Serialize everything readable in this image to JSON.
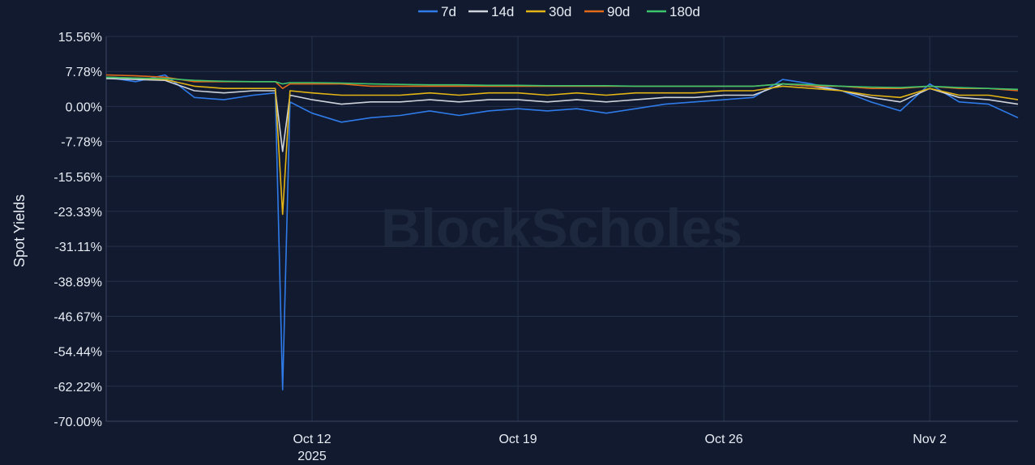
{
  "chart_data": {
    "type": "line",
    "title": "",
    "xlabel": "",
    "ylabel": "Spot Yields",
    "watermark": "BlockScholes",
    "ylim": [
      -70.0,
      15.56
    ],
    "xlim": [
      "2025-10-05",
      "2025-11-05"
    ],
    "yticks": [
      "15.56%",
      "7.78%",
      "0.00%",
      "-7.78%",
      "-15.56%",
      "-23.33%",
      "-31.11%",
      "-38.89%",
      "-46.67%",
      "-54.44%",
      "-62.22%",
      "-70.00%"
    ],
    "ytick_values": [
      15.56,
      7.78,
      0.0,
      -7.78,
      -15.56,
      -23.33,
      -31.11,
      -38.89,
      -46.67,
      -54.44,
      -62.22,
      -70.0
    ],
    "xticks": [
      {
        "label": "Oct 12",
        "sublabel": "2025",
        "date": "2025-10-12"
      },
      {
        "label": "Oct 19",
        "sublabel": "",
        "date": "2025-10-19"
      },
      {
        "label": "Oct 26",
        "sublabel": "",
        "date": "2025-10-26"
      },
      {
        "label": "Nov 2",
        "sublabel": "",
        "date": "2025-11-02"
      }
    ],
    "grid": true,
    "legend_position": "top-center",
    "series": [
      {
        "name": "7d",
        "color": "#2f7bea",
        "points": [
          [
            "2025-10-05",
            6.5
          ],
          [
            "2025-10-06",
            5.5
          ],
          [
            "2025-10-07",
            7.0
          ],
          [
            "2025-10-08",
            2.0
          ],
          [
            "2025-10-09",
            1.5
          ],
          [
            "2025-10-10",
            2.5
          ],
          [
            "2025-10-10T18:00",
            3.0
          ],
          [
            "2025-10-11",
            -63.0
          ],
          [
            "2025-10-11T06:00",
            1.0
          ],
          [
            "2025-10-12",
            -1.5
          ],
          [
            "2025-10-13",
            -3.5
          ],
          [
            "2025-10-14",
            -2.5
          ],
          [
            "2025-10-15",
            -2.0
          ],
          [
            "2025-10-16",
            -1.0
          ],
          [
            "2025-10-17",
            -2.0
          ],
          [
            "2025-10-18",
            -1.0
          ],
          [
            "2025-10-19",
            -0.5
          ],
          [
            "2025-10-20",
            -1.0
          ],
          [
            "2025-10-21",
            -0.5
          ],
          [
            "2025-10-22",
            -1.5
          ],
          [
            "2025-10-23",
            -0.5
          ],
          [
            "2025-10-24",
            0.5
          ],
          [
            "2025-10-25",
            1.0
          ],
          [
            "2025-10-26",
            1.5
          ],
          [
            "2025-10-27",
            2.0
          ],
          [
            "2025-10-28",
            6.0
          ],
          [
            "2025-10-29",
            5.0
          ],
          [
            "2025-10-30",
            3.5
          ],
          [
            "2025-10-31",
            1.0
          ],
          [
            "2025-11-01",
            -1.0
          ],
          [
            "2025-11-02",
            5.0
          ],
          [
            "2025-11-03",
            1.0
          ],
          [
            "2025-11-04",
            0.5
          ],
          [
            "2025-11-05",
            -2.5
          ]
        ]
      },
      {
        "name": "14d",
        "color": "#cfd4dc",
        "points": [
          [
            "2025-10-05",
            6.2
          ],
          [
            "2025-10-06",
            6.0
          ],
          [
            "2025-10-07",
            5.8
          ],
          [
            "2025-10-08",
            3.5
          ],
          [
            "2025-10-09",
            3.0
          ],
          [
            "2025-10-10",
            3.5
          ],
          [
            "2025-10-10T18:00",
            3.5
          ],
          [
            "2025-10-11",
            -10.0
          ],
          [
            "2025-10-11T06:00",
            2.5
          ],
          [
            "2025-10-12",
            1.5
          ],
          [
            "2025-10-13",
            0.5
          ],
          [
            "2025-10-14",
            1.0
          ],
          [
            "2025-10-15",
            1.0
          ],
          [
            "2025-10-16",
            1.5
          ],
          [
            "2025-10-17",
            1.0
          ],
          [
            "2025-10-18",
            1.5
          ],
          [
            "2025-10-19",
            1.5
          ],
          [
            "2025-10-20",
            1.0
          ],
          [
            "2025-10-21",
            1.5
          ],
          [
            "2025-10-22",
            1.0
          ],
          [
            "2025-10-23",
            1.5
          ],
          [
            "2025-10-24",
            2.0
          ],
          [
            "2025-10-25",
            2.0
          ],
          [
            "2025-10-26",
            2.5
          ],
          [
            "2025-10-27",
            2.5
          ],
          [
            "2025-10-28",
            5.0
          ],
          [
            "2025-10-29",
            4.5
          ],
          [
            "2025-10-30",
            3.5
          ],
          [
            "2025-10-31",
            2.0
          ],
          [
            "2025-11-01",
            1.0
          ],
          [
            "2025-11-02",
            4.0
          ],
          [
            "2025-11-03",
            2.0
          ],
          [
            "2025-11-04",
            1.5
          ],
          [
            "2025-11-05",
            0.5
          ]
        ]
      },
      {
        "name": "30d",
        "color": "#e3b416",
        "points": [
          [
            "2025-10-05",
            6.5
          ],
          [
            "2025-10-06",
            6.3
          ],
          [
            "2025-10-07",
            6.0
          ],
          [
            "2025-10-08",
            4.5
          ],
          [
            "2025-10-09",
            4.0
          ],
          [
            "2025-10-10",
            4.0
          ],
          [
            "2025-10-10T18:00",
            4.0
          ],
          [
            "2025-10-11",
            -24.0
          ],
          [
            "2025-10-11T06:00",
            3.5
          ],
          [
            "2025-10-12",
            3.0
          ],
          [
            "2025-10-13",
            2.5
          ],
          [
            "2025-10-14",
            2.5
          ],
          [
            "2025-10-15",
            2.5
          ],
          [
            "2025-10-16",
            3.0
          ],
          [
            "2025-10-17",
            2.5
          ],
          [
            "2025-10-18",
            3.0
          ],
          [
            "2025-10-19",
            3.0
          ],
          [
            "2025-10-20",
            2.5
          ],
          [
            "2025-10-21",
            3.0
          ],
          [
            "2025-10-22",
            2.5
          ],
          [
            "2025-10-23",
            3.0
          ],
          [
            "2025-10-24",
            3.0
          ],
          [
            "2025-10-25",
            3.0
          ],
          [
            "2025-10-26",
            3.5
          ],
          [
            "2025-10-27",
            3.5
          ],
          [
            "2025-10-28",
            4.5
          ],
          [
            "2025-10-29",
            4.0
          ],
          [
            "2025-10-30",
            3.5
          ],
          [
            "2025-10-31",
            2.5
          ],
          [
            "2025-11-01",
            2.0
          ],
          [
            "2025-11-02",
            4.0
          ],
          [
            "2025-11-03",
            2.5
          ],
          [
            "2025-11-04",
            2.5
          ],
          [
            "2025-11-05",
            1.5
          ]
        ]
      },
      {
        "name": "90d",
        "color": "#e06a1a",
        "points": [
          [
            "2025-10-05",
            7.0
          ],
          [
            "2025-10-06",
            6.8
          ],
          [
            "2025-10-07",
            6.5
          ],
          [
            "2025-10-08",
            5.5
          ],
          [
            "2025-10-09",
            5.5
          ],
          [
            "2025-10-10",
            5.5
          ],
          [
            "2025-10-10T18:00",
            5.5
          ],
          [
            "2025-10-11",
            4.0
          ],
          [
            "2025-10-11T06:00",
            5.0
          ],
          [
            "2025-10-12",
            5.0
          ],
          [
            "2025-10-13",
            5.0
          ],
          [
            "2025-10-14",
            4.5
          ],
          [
            "2025-10-15",
            4.5
          ],
          [
            "2025-10-16",
            4.5
          ],
          [
            "2025-10-17",
            4.5
          ],
          [
            "2025-10-18",
            4.5
          ],
          [
            "2025-10-19",
            4.5
          ],
          [
            "2025-10-20",
            4.5
          ],
          [
            "2025-10-21",
            4.5
          ],
          [
            "2025-10-22",
            4.5
          ],
          [
            "2025-10-23",
            4.5
          ],
          [
            "2025-10-24",
            4.5
          ],
          [
            "2025-10-25",
            4.5
          ],
          [
            "2025-10-26",
            4.5
          ],
          [
            "2025-10-27",
            4.5
          ],
          [
            "2025-10-28",
            5.0
          ],
          [
            "2025-10-29",
            4.5
          ],
          [
            "2025-10-30",
            4.5
          ],
          [
            "2025-10-31",
            4.0
          ],
          [
            "2025-11-01",
            4.0
          ],
          [
            "2025-11-02",
            4.5
          ],
          [
            "2025-11-03",
            4.0
          ],
          [
            "2025-11-04",
            4.0
          ],
          [
            "2025-11-05",
            3.5
          ]
        ]
      },
      {
        "name": "180d",
        "color": "#3ec46d",
        "points": [
          [
            "2025-10-05",
            6.5
          ],
          [
            "2025-10-06",
            6.3
          ],
          [
            "2025-10-07",
            6.2
          ],
          [
            "2025-10-08",
            5.8
          ],
          [
            "2025-10-09",
            5.6
          ],
          [
            "2025-10-10",
            5.5
          ],
          [
            "2025-10-10T18:00",
            5.5
          ],
          [
            "2025-10-11",
            5.0
          ],
          [
            "2025-10-11T06:00",
            5.3
          ],
          [
            "2025-10-12",
            5.3
          ],
          [
            "2025-10-13",
            5.2
          ],
          [
            "2025-10-14",
            5.0
          ],
          [
            "2025-10-15",
            4.9
          ],
          [
            "2025-10-16",
            4.8
          ],
          [
            "2025-10-17",
            4.8
          ],
          [
            "2025-10-18",
            4.7
          ],
          [
            "2025-10-19",
            4.7
          ],
          [
            "2025-10-20",
            4.6
          ],
          [
            "2025-10-21",
            4.6
          ],
          [
            "2025-10-22",
            4.6
          ],
          [
            "2025-10-23",
            4.5
          ],
          [
            "2025-10-24",
            4.5
          ],
          [
            "2025-10-25",
            4.5
          ],
          [
            "2025-10-26",
            4.5
          ],
          [
            "2025-10-27",
            4.5
          ],
          [
            "2025-10-28",
            5.0
          ],
          [
            "2025-10-29",
            4.8
          ],
          [
            "2025-10-30",
            4.5
          ],
          [
            "2025-10-31",
            4.3
          ],
          [
            "2025-11-01",
            4.2
          ],
          [
            "2025-11-02",
            4.5
          ],
          [
            "2025-11-03",
            4.2
          ],
          [
            "2025-11-04",
            4.0
          ],
          [
            "2025-11-05",
            3.8
          ]
        ]
      }
    ]
  }
}
